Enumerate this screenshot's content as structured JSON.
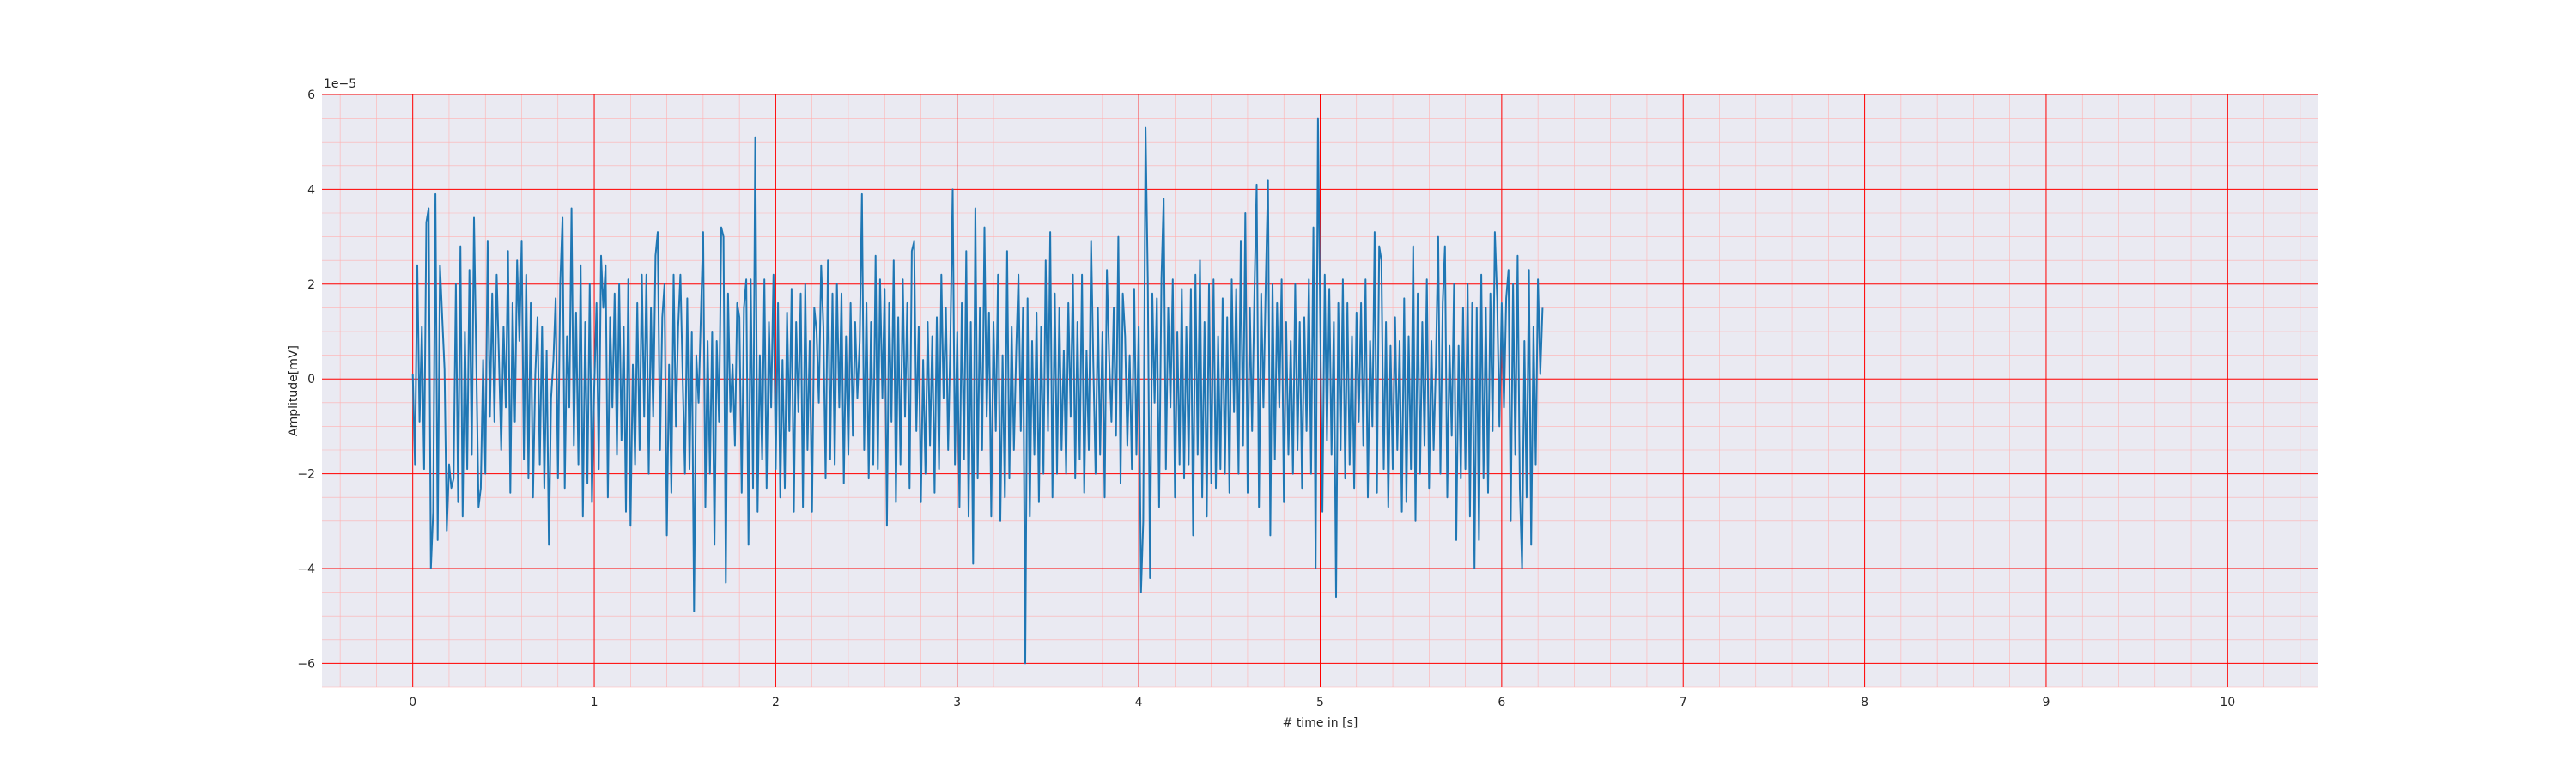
{
  "chart_data": {
    "type": "line",
    "title": "",
    "xlabel": "# time in [s]",
    "ylabel": "Amplitude[mV]",
    "y_offset_text": "1e−5",
    "xlim": [
      -0.5,
      10.5
    ],
    "ylim": [
      -6.5,
      6
    ],
    "grid": true,
    "minor_grid": true,
    "colors": {
      "background": "#eaeaf2",
      "major_grid": "#ff0000",
      "minor_grid": "#ffb0b0",
      "line": "#1f77b4"
    },
    "x_ticks": [
      "0",
      "1",
      "2",
      "3",
      "4",
      "5",
      "6",
      "7",
      "8",
      "9",
      "10"
    ],
    "y_ticks": [
      "−6",
      "−4",
      "−2",
      "0",
      "2",
      "4",
      "6"
    ],
    "series": [
      {
        "x_start": 0,
        "x_step": 0.0125,
        "values": [
          0.1,
          -1.8,
          2.4,
          -0.9,
          1.1,
          -1.9,
          3.3,
          3.6,
          -4.0,
          -2.8,
          3.9,
          -3.4,
          2.4,
          1.3,
          0.2,
          -3.2,
          -1.8,
          -2.3,
          -2.1,
          2.0,
          -2.6,
          2.8,
          -2.9,
          1.0,
          -1.9,
          2.3,
          -1.6,
          3.4,
          0.3,
          -2.7,
          -2.3,
          0.4,
          -2.0,
          2.9,
          -0.8,
          1.8,
          -0.9,
          2.2,
          0.4,
          -1.5,
          1.1,
          -0.6,
          2.7,
          -2.4,
          1.6,
          -0.9,
          2.5,
          0.8,
          2.9,
          -1.7,
          2.2,
          -2.1,
          1.6,
          -2.5,
          0.1,
          1.3,
          -1.8,
          1.1,
          -2.3,
          0.6,
          -3.5,
          -0.4,
          0.4,
          1.7,
          -2.1,
          2.0,
          3.4,
          -2.3,
          0.9,
          -0.6,
          3.6,
          -1.4,
          1.4,
          -1.8,
          2.4,
          -2.9,
          1.2,
          -2.2,
          2.0,
          -2.6,
          -0.2,
          1.6,
          -1.9,
          2.6,
          1.5,
          2.4,
          -2.5,
          1.3,
          -0.6,
          1.8,
          -1.6,
          2.0,
          -1.3,
          1.1,
          -2.8,
          2.1,
          -3.1,
          0.3,
          -1.8,
          1.6,
          -1.5,
          2.2,
          -0.8,
          2.2,
          -2.0,
          1.5,
          -0.8,
          2.6,
          3.1,
          -1.5,
          1.3,
          2.0,
          -3.3,
          0.3,
          -2.4,
          2.2,
          -1.0,
          1.1,
          2.2,
          0.0,
          -2.0,
          1.7,
          -1.9,
          1.0,
          -4.9,
          0.5,
          -0.5,
          1.3,
          3.1,
          -2.7,
          0.8,
          -2.0,
          1.0,
          -3.5,
          0.8,
          -0.9,
          3.2,
          3.0,
          -4.3,
          1.8,
          -0.7,
          0.3,
          -1.4,
          1.6,
          1.3,
          -2.4,
          1.5,
          2.1,
          -3.5,
          2.1,
          -2.3,
          5.1,
          -2.8,
          0.5,
          -1.7,
          2.1,
          -2.3,
          1.2,
          -0.6,
          2.2,
          -1.9,
          1.6,
          -2.5,
          0.4,
          -2.3,
          1.4,
          -1.1,
          1.9,
          -2.8,
          1.2,
          -0.7,
          1.8,
          -2.7,
          2.0,
          -1.5,
          0.8,
          -2.8,
          1.5,
          1.0,
          -0.5,
          2.4,
          1.1,
          -2.1,
          2.5,
          -1.7,
          1.8,
          -1.8,
          2.0,
          -0.6,
          1.8,
          -2.2,
          0.9,
          -1.6,
          1.6,
          -1.2,
          1.2,
          -0.4,
          0.8,
          3.9,
          -1.5,
          1.6,
          -2.1,
          1.2,
          -1.8,
          2.6,
          -1.9,
          2.1,
          -0.4,
          1.9,
          -3.1,
          1.6,
          -0.9,
          2.5,
          -2.6,
          1.3,
          -1.8,
          2.1,
          -0.8,
          1.6,
          -2.3,
          2.7,
          2.9,
          -1.1,
          1.1,
          -2.6,
          0.4,
          -2.0,
          1.2,
          -1.4,
          0.9,
          -2.4,
          1.3,
          -1.9,
          2.2,
          -0.4,
          1.5,
          -1.5,
          0.8,
          4.0,
          -1.8,
          1.0,
          -2.7,
          1.6,
          -1.7,
          2.7,
          -2.9,
          1.2,
          -3.9,
          3.6,
          -2.1,
          1.5,
          -1.5,
          3.2,
          -0.8,
          1.4,
          -2.9,
          1.2,
          -1.1,
          2.2,
          -3.0,
          0.5,
          -2.5,
          2.7,
          -2.1,
          1.1,
          -1.5,
          0.6,
          2.2,
          -1.1,
          1.5,
          -6.0,
          1.7,
          -2.9,
          0.8,
          -1.6,
          1.4,
          -2.6,
          1.1,
          -2.0,
          2.5,
          -1.1,
          3.1,
          -2.5,
          1.8,
          -2.0,
          1.5,
          -1.5,
          0.6,
          -2.0,
          1.6,
          -0.8,
          2.2,
          -2.1,
          1.2,
          -1.7,
          2.2,
          -2.4,
          0.6,
          -1.5,
          2.9,
          0.3,
          -2.0,
          1.5,
          -1.6,
          1.0,
          -2.5,
          2.3,
          0.4,
          -0.9,
          1.5,
          -1.2,
          3.0,
          -2.2,
          1.8,
          0.9,
          -1.4,
          0.5,
          -1.9,
          1.9,
          -1.6,
          1.1,
          -4.5,
          -3.0,
          5.3,
          2.1,
          -4.2,
          1.8,
          -0.5,
          1.7,
          -2.7,
          2.1,
          3.8,
          -1.9,
          1.5,
          -0.6,
          2.1,
          -2.5,
          1.0,
          -1.8,
          1.9,
          -2.1,
          1.1,
          -1.8,
          1.9,
          -3.3,
          2.2,
          -1.6,
          2.5,
          -2.5,
          1.2,
          -2.9,
          2.0,
          -2.2,
          2.1,
          -2.3,
          0.9,
          -1.9,
          1.7,
          -2.0,
          1.3,
          -2.4,
          2.1,
          -0.7,
          1.9,
          -2.0,
          2.9,
          -1.4,
          3.5,
          -2.4,
          1.5,
          -1.1,
          1.8,
          4.1,
          -2.7,
          1.8,
          -0.6,
          2.0,
          4.2,
          -3.3,
          2.0,
          -1.7,
          1.6,
          -0.6,
          2.1,
          -2.6,
          1.2,
          -1.6,
          0.8,
          -2.0,
          2.0,
          -1.5,
          1.2,
          -2.3,
          1.3,
          -1.1,
          2.1,
          -2.0,
          3.2,
          -4.0,
          5.5,
          1.3,
          -2.8,
          2.2,
          -1.3,
          1.9,
          -1.6,
          1.2,
          -4.6,
          1.6,
          -1.5,
          2.1,
          -2.1,
          1.6,
          -1.8,
          0.9,
          -2.3,
          1.4,
          -0.9,
          1.6,
          -1.4,
          2.1,
          -2.5,
          0.8,
          -1.0,
          3.1,
          -2.4,
          2.8,
          2.5,
          -1.9,
          1.2,
          -2.7,
          0.7,
          -1.9,
          1.3,
          -1.5,
          0.8,
          -2.8,
          1.7,
          -2.6,
          0.9,
          -1.9,
          2.8,
          -3.0,
          1.8,
          -2.0,
          1.2,
          -1.4,
          2.1,
          -2.3,
          0.8,
          -1.5,
          0.3,
          3.0,
          -2.0,
          1.6,
          2.8,
          -2.5,
          0.7,
          -1.2,
          2.0,
          -3.4,
          0.7,
          -2.1,
          1.5,
          -1.9,
          2.0,
          -2.9,
          1.6,
          -4.0,
          1.5,
          -3.4,
          2.2,
          -2.1,
          1.5,
          -2.4,
          1.8,
          -1.1,
          3.1,
          1.7,
          -1.0,
          1.6,
          -0.6,
          1.7,
          2.3,
          -3.0,
          2.0,
          -1.6,
          2.6,
          -2.3,
          -4.0,
          0.8,
          -2.5,
          2.3,
          -3.5,
          1.1,
          -1.8,
          2.1,
          0.1,
          1.5
        ]
      }
    ]
  }
}
